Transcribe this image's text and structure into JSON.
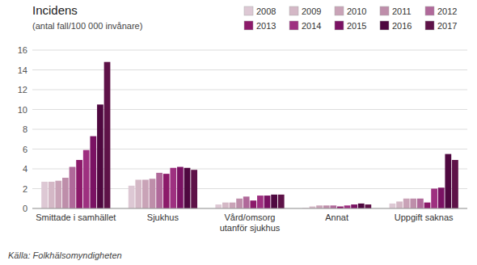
{
  "chart_data": {
    "type": "bar",
    "title": "Incidens",
    "subtitle": "(antal fall/100 000 invånare)",
    "annotations": [
      "Källa: Folkhälsomyndigheten"
    ],
    "categories": [
      "Smittade i samhället",
      "Sjukhus",
      "Vård/omsorg\nutanför sjukhus",
      "Annat",
      "Uppgift saknas"
    ],
    "series": [
      {
        "name": "2008",
        "color": "#ddc8d4",
        "values": [
          2.7,
          2.3,
          0.4,
          0.05,
          0.5
        ]
      },
      {
        "name": "2009",
        "color": "#d4b8c6",
        "values": [
          2.7,
          2.9,
          0.6,
          0.2,
          0.7
        ]
      },
      {
        "name": "2010",
        "color": "#c9a3b7",
        "values": [
          2.8,
          2.9,
          0.6,
          0.3,
          1.0
        ]
      },
      {
        "name": "2011",
        "color": "#be8eaa",
        "values": [
          3.1,
          3.0,
          1.0,
          0.3,
          1.0
        ]
      },
      {
        "name": "2012",
        "color": "#b0699a",
        "values": [
          4.2,
          3.6,
          1.2,
          0.3,
          1.0
        ]
      },
      {
        "name": "2013",
        "color": "#8c1a6a",
        "values": [
          4.9,
          3.5,
          0.8,
          0.2,
          0.6
        ]
      },
      {
        "name": "2014",
        "color": "#9e3080",
        "values": [
          5.9,
          4.1,
          1.3,
          0.3,
          2.0
        ]
      },
      {
        "name": "2015",
        "color": "#7a1263",
        "values": [
          7.3,
          4.2,
          1.3,
          0.4,
          2.1
        ]
      },
      {
        "name": "2016",
        "color": "#4f0840",
        "values": [
          10.5,
          4.1,
          1.4,
          0.5,
          5.5
        ]
      },
      {
        "name": "2017",
        "color": "#5e1248",
        "values": [
          14.8,
          3.9,
          1.4,
          0.4,
          4.9
        ]
      }
    ],
    "ylim": [
      0,
      16
    ],
    "yticks": [
      0,
      2,
      4,
      6,
      8,
      10,
      12,
      14,
      16
    ],
    "grid": true,
    "legend": "top"
  }
}
